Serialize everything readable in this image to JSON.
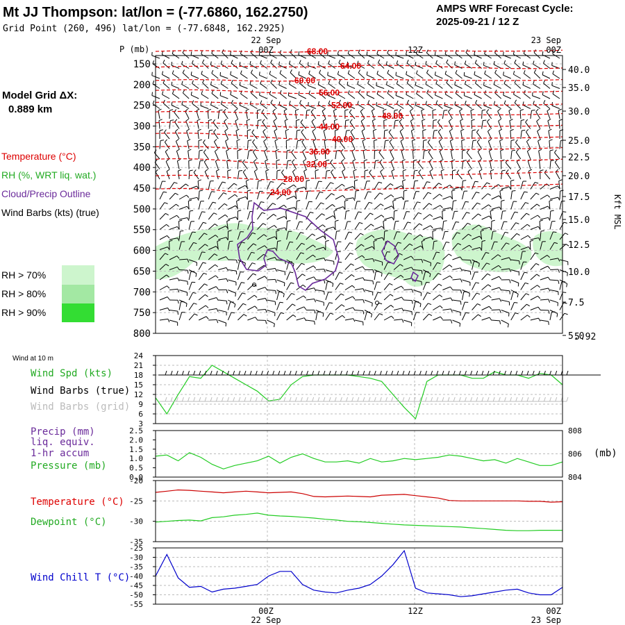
{
  "header": {
    "title": "Mt JJ Thompson:  lat/lon = (-77.6860, 162.2750)",
    "subtitle": "Grid Point (260, 496) lat/lon = (-77.6848, 162.2925)",
    "cycle_label": "AMPS WRF Forecast Cycle:",
    "cycle_value": "2025-09-21 / 12  Z"
  },
  "grid_info": {
    "label": "Model Grid ΔX:",
    "value": "0.889 km"
  },
  "colors": {
    "temperature": "#dd0000",
    "rh_text": "#22aa22",
    "cloud": "#6a2a9a",
    "wind": "#000000",
    "wind_grid": "#bbbbbb",
    "rh70": "#cdf5cd",
    "rh80": "#a3e8a3",
    "rh90": "#33dd33",
    "green_line": "#22cc22",
    "red_line": "#cc0000",
    "blue_line": "#0000cc",
    "gridline": "#bbbbbb"
  },
  "legend": {
    "temperature": "Temperature (°C)",
    "rh": "RH (%, WRT liq. wat.)",
    "cloud": "Cloud/Precip Outline",
    "wind": "Wind Barbs (kts) (true)",
    "rh70": "RH > 70%",
    "rh80": "RH > 80%",
    "rh90": "RH > 90%"
  },
  "chart_data": [
    {
      "type": "contour",
      "name": "sounding-time-height",
      "pressure_label": "P (mb)",
      "pressure_ticks": [
        150,
        200,
        250,
        300,
        350,
        400,
        450,
        500,
        550,
        600,
        650,
        700,
        750,
        800
      ],
      "kft_label": "Kft MSL",
      "kft_ticks": [
        "40.0",
        "35.0",
        "30.0",
        "25.0",
        "22.5",
        "20.0",
        "17.5",
        "15.0",
        "12.5",
        "10.0",
        "7.5",
        "5.0"
      ],
      "surface_label": "5.92",
      "top_time_labels": [
        {
          "top": "22 Sep",
          "bottom": "00Z"
        },
        {
          "top": "",
          "bottom": "12Z"
        },
        {
          "top": "23 Sep",
          "bottom": "00Z"
        }
      ],
      "temperature_contours": [
        {
          "label": "-68.00",
          "p": 120,
          "p_start": 120,
          "p_end": 117
        },
        {
          "label": "-64.00",
          "p": 155,
          "p_start": 158,
          "p_end": 160
        },
        {
          "label": "-60.00",
          "p": 190,
          "p_start": 190,
          "p_end": 188
        },
        {
          "label": "-56.00",
          "p": 220,
          "p_start": 214,
          "p_end": 216
        },
        {
          "label": "-52.00",
          "p": 250,
          "p_start": 243,
          "p_end": 247
        },
        {
          "label": "-48.00",
          "p": 276,
          "p_start": 266,
          "p_end": 270
        },
        {
          "label": "-44.00",
          "p": 302,
          "p_start": 292,
          "p_end": 298
        },
        {
          "label": "-40.00",
          "p": 332,
          "p_start": 318,
          "p_end": 326
        },
        {
          "label": "-36.00",
          "p": 362,
          "p_start": 350,
          "p_end": 352
        },
        {
          "label": "-32.00",
          "p": 392,
          "p_start": 380,
          "p_end": 380
        },
        {
          "label": "-28.00",
          "p": 428,
          "p_start": 420,
          "p_end": 410
        },
        {
          "label": "-24.00",
          "p": 460,
          "p_start": 452,
          "p_end": 440
        }
      ]
    },
    {
      "type": "line",
      "name": "wind-10m",
      "title": "Wind at 10 m",
      "y_ticks": [
        3,
        6,
        9,
        12,
        15,
        18,
        21,
        24
      ],
      "ylim": [
        3,
        24
      ],
      "labels": {
        "speed": "Wind Spd (kts)",
        "barbs_true": "Wind Barbs (true)",
        "barbs_grid": "Wind Barbs (grid)"
      },
      "x_hours": [
        0,
        1,
        2,
        3,
        4,
        5,
        6,
        7,
        8,
        9,
        10,
        11,
        12,
        13,
        14,
        15,
        16,
        17,
        18,
        19,
        20,
        21,
        22,
        23,
        24,
        25,
        26,
        27,
        28,
        29,
        30,
        31,
        32,
        33,
        34,
        35,
        36
      ],
      "wind_speed": [
        11,
        6,
        12,
        17.5,
        17,
        21,
        19,
        17,
        15,
        13,
        10,
        10.5,
        15,
        17.5,
        18,
        18,
        18,
        18,
        17.5,
        17,
        16,
        12,
        8,
        4.5,
        16,
        18,
        18,
        18,
        17,
        17,
        19,
        18,
        18,
        17,
        18.5,
        18,
        15
      ]
    },
    {
      "type": "line",
      "name": "precip-pressure",
      "labels": {
        "precip": "Precip (mm)",
        "precip2": "liq. equiv.",
        "precip3": "1-hr accum",
        "pressure": "Pressure (mb)"
      },
      "left_ticks": [
        "2.5",
        "2.0",
        "1.5",
        "1.0",
        "0.5",
        "0.0"
      ],
      "right_ticks": [
        "808",
        "806",
        "804"
      ],
      "right_unit": "(mb)",
      "pressure": [
        805.8,
        805.9,
        805.4,
        806.1,
        805.7,
        805.1,
        804.7,
        805.0,
        805.2,
        805.4,
        805.8,
        805.2,
        805.7,
        806.0,
        805.6,
        805.3,
        805.3,
        805.4,
        805.2,
        805.6,
        805.3,
        805.4,
        805.6,
        805.5,
        805.6,
        805.7,
        805.9,
        805.8,
        805.6,
        805.4,
        805.5,
        805.2,
        805.6,
        805.3,
        805.0,
        805.0,
        805.3
      ]
    },
    {
      "type": "line",
      "name": "temp-dewpoint",
      "labels": {
        "temperature": "Temperature (°C)",
        "dewpoint": "Dewpoint (°C)"
      },
      "y_ticks": [
        "-20",
        "-25",
        "-30",
        "-35"
      ],
      "ylim": [
        -35,
        -20
      ],
      "temperature": [
        -22.9,
        -22.6,
        -22.3,
        -22.4,
        -22.6,
        -22.8,
        -23.0,
        -22.8,
        -22.6,
        -22.8,
        -23.0,
        -22.9,
        -22.8,
        -23.2,
        -23.9,
        -24.0,
        -23.9,
        -23.8,
        -23.9,
        -24.0,
        -23.6,
        -23.5,
        -23.4,
        -23.7,
        -24.0,
        -24.3,
        -24.9,
        -25.0,
        -25.0,
        -25.0,
        -25.0,
        -25.0,
        -25.0,
        -25.1,
        -25.1,
        -25.3,
        -25.2
      ],
      "dewpoint": [
        -30.2,
        -30.0,
        -29.8,
        -29.7,
        -29.9,
        -29.1,
        -28.9,
        -28.5,
        -28.3,
        -28.0,
        -28.5,
        -28.7,
        -28.8,
        -29.0,
        -29.2,
        -29.5,
        -29.7,
        -30.0,
        -30.1,
        -30.3,
        -30.5,
        -30.7,
        -30.9,
        -31.0,
        -31.1,
        -31.2,
        -31.3,
        -31.4,
        -31.6,
        -31.8,
        -32.0,
        -32.2,
        -32.3,
        -32.3,
        -32.2,
        -32.2,
        -32.2
      ]
    },
    {
      "type": "line",
      "name": "wind-chill",
      "labels": {
        "windchill": "Wind Chill T (°C)"
      },
      "y_ticks": [
        "-25",
        "-30",
        "-35",
        "-40",
        "-45",
        "-50",
        "-55"
      ],
      "ylim": [
        -55,
        -25
      ],
      "wind_chill": [
        -40,
        -28.5,
        -41,
        -46,
        -45.5,
        -48.5,
        -47,
        -46.5,
        -45.5,
        -44.5,
        -40,
        -37.5,
        -37.5,
        -44.5,
        -47.5,
        -48.5,
        -49,
        -47.5,
        -46.5,
        -44.5,
        -40,
        -34,
        -26.5,
        -46.5,
        -49,
        -49.5,
        -50,
        -51,
        -50.5,
        -49.5,
        -48.5,
        -47.5,
        -47,
        -49,
        -50,
        -50,
        -46
      ],
      "bottom_time_labels": [
        {
          "top": "00Z",
          "bottom": "22 Sep"
        },
        {
          "top": "12Z",
          "bottom": ""
        },
        {
          "top": "00Z",
          "bottom": "23 Sep"
        }
      ]
    }
  ]
}
